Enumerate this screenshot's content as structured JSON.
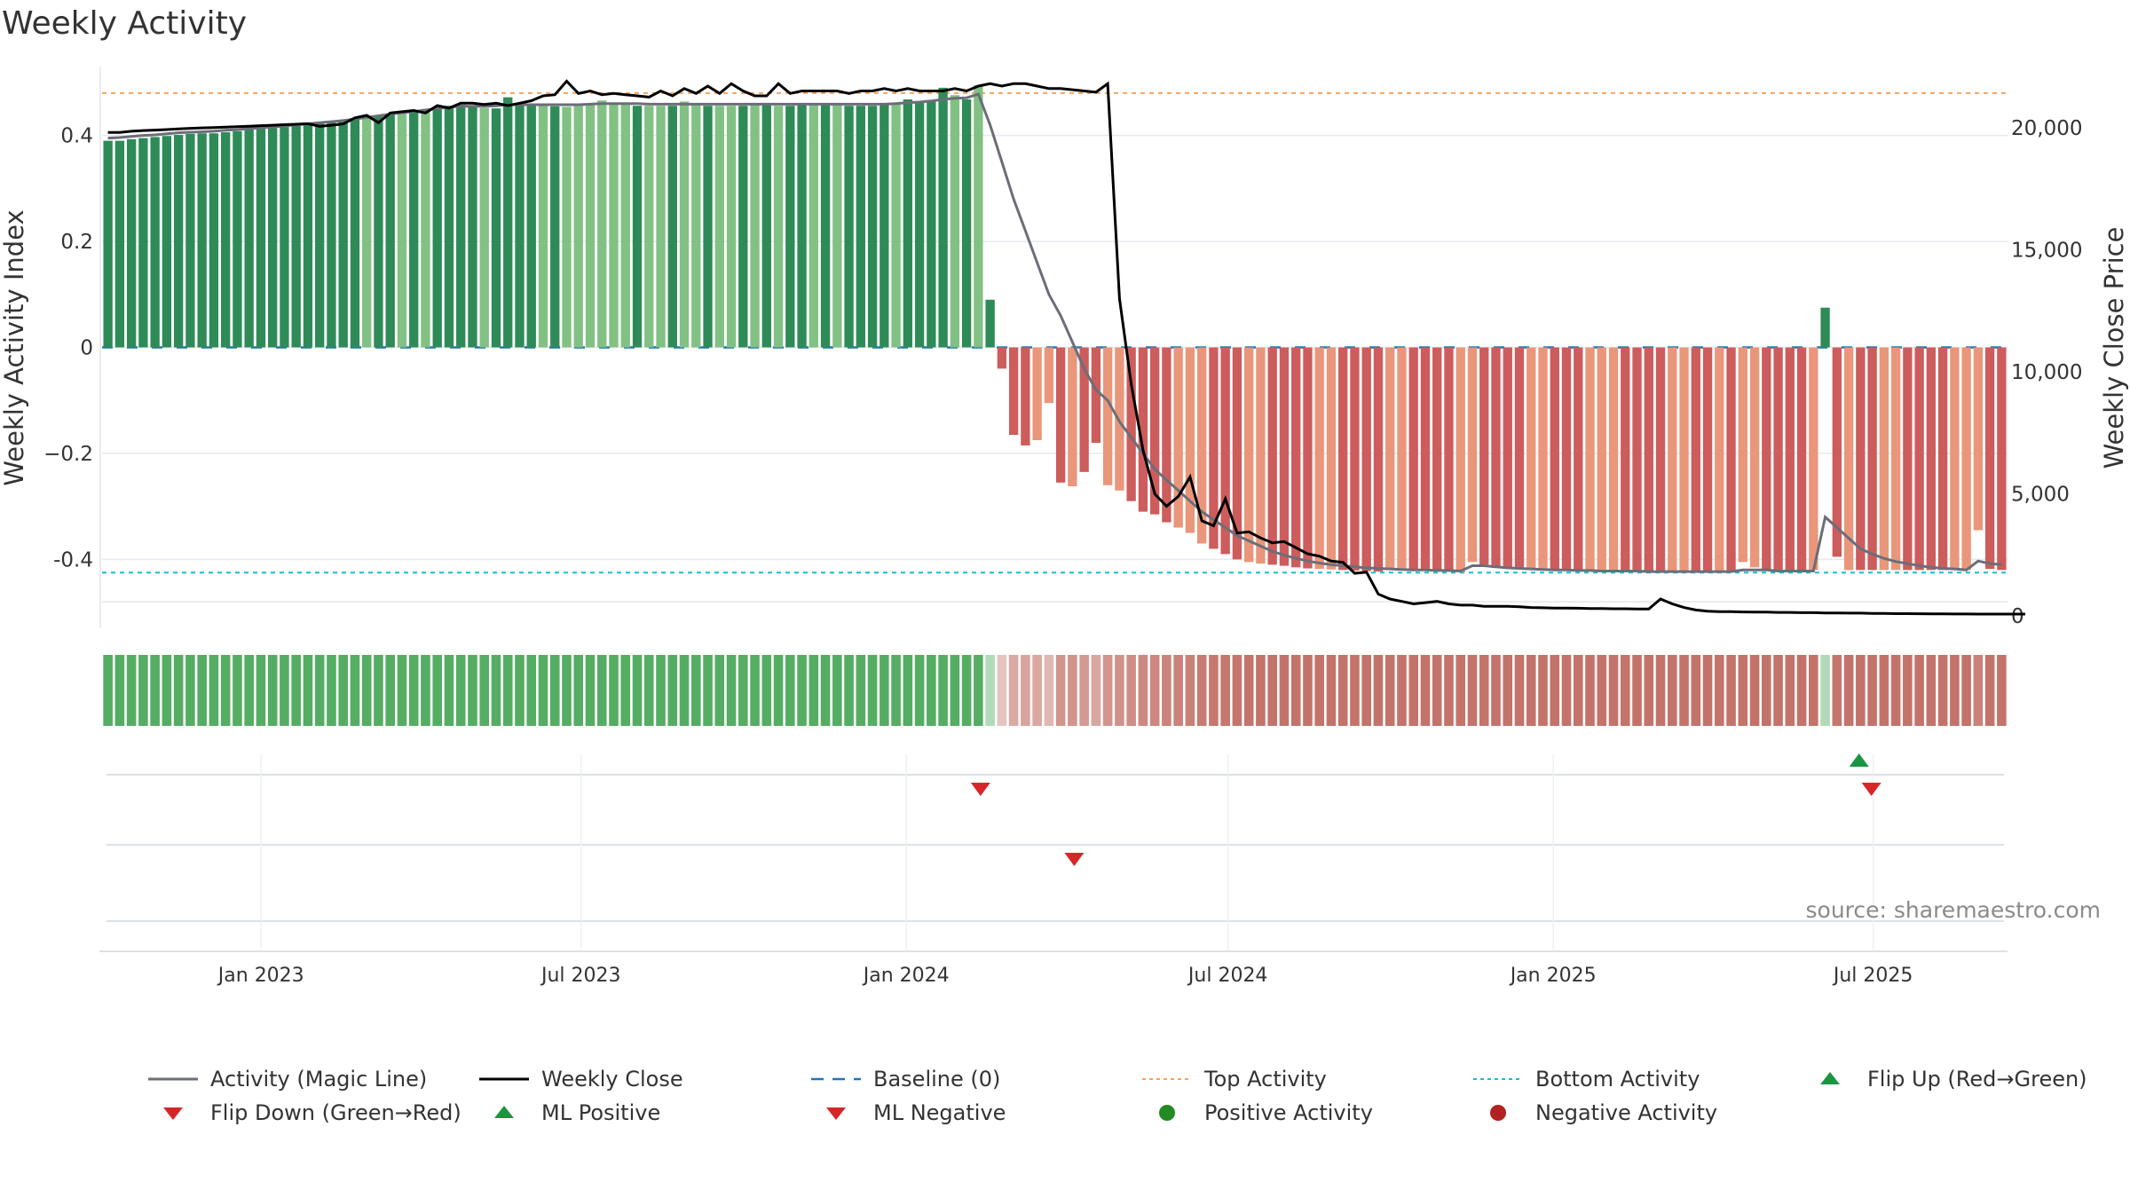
{
  "chart_data": {
    "type": "bar",
    "title": "Weekly Activity",
    "ylabel": "Weekly Activity Index",
    "y2label": "Weekly Close Price",
    "ylim": [
      -0.53,
      0.53
    ],
    "y2lim": [
      -500,
      22500
    ],
    "yticks": [
      "0.4",
      "0.2",
      "0",
      "−0.2",
      "-0.4"
    ],
    "ytick_values": [
      0.4,
      0.2,
      0,
      -0.2,
      -0.4
    ],
    "y2ticks": [
      "20,000",
      "15,000",
      "10,000",
      "5,000",
      "0"
    ],
    "y2tick_values": [
      20000,
      15000,
      10000,
      5000,
      0
    ],
    "x_start": "2022-10-03",
    "x_end": "2025-09-15",
    "xticks": [
      "Jan 2023",
      "Jul 2023",
      "Jan 2024",
      "Jul 2024",
      "Jan 2025",
      "Jul 2025"
    ],
    "xtick_dates": [
      "2023-01-01",
      "2023-07-01",
      "2024-01-01",
      "2024-07-01",
      "2025-01-01",
      "2025-07-01"
    ],
    "top_activity": 0.48,
    "bottom_activity": -0.425,
    "source": "source: sharemaestro.com",
    "grid": true,
    "legend_position": "bottom",
    "colors": {
      "pos_dark": "#2e8b57",
      "pos_light": "#82c184",
      "neg_dark": "#cd5c5c",
      "neg_light": "#e9967a",
      "magic_line": "#6b6e78",
      "close_line": "#000000",
      "baseline": "#1f77b4",
      "top": "#f4a460",
      "bottom": "#17becf",
      "flip_up": "#1a9641",
      "flip_down": "#d62728",
      "strip_green": "#55ad63",
      "strip_red": "#c4736a"
    },
    "series": [
      {
        "name": "Weekly Activity",
        "values": [
          0.39,
          0.39,
          0.393,
          0.395,
          0.397,
          0.399,
          0.401,
          0.403,
          0.404,
          0.404,
          0.406,
          0.408,
          0.411,
          0.412,
          0.414,
          0.416,
          0.418,
          0.42,
          0.422,
          0.424,
          0.427,
          0.43,
          0.433,
          0.436,
          0.44,
          0.443,
          0.446,
          0.45,
          0.453,
          0.456,
          0.458,
          0.455,
          0.452,
          0.451,
          0.472,
          0.46,
          0.458,
          0.456,
          0.455,
          0.454,
          0.456,
          0.46,
          0.466,
          0.46,
          0.458,
          0.456,
          0.456,
          0.456,
          0.456,
          0.464,
          0.458,
          0.456,
          0.456,
          0.456,
          0.456,
          0.46,
          0.458,
          0.456,
          0.456,
          0.458,
          0.458,
          0.458,
          0.458,
          0.456,
          0.456,
          0.456,
          0.458,
          0.46,
          0.468,
          0.462,
          0.466,
          0.49,
          0.476,
          0.468,
          0.495,
          0.09,
          -0.04,
          -0.165,
          -0.185,
          -0.175,
          -0.105,
          -0.255,
          -0.262,
          -0.235,
          -0.18,
          -0.26,
          -0.27,
          -0.29,
          -0.31,
          -0.315,
          -0.33,
          -0.34,
          -0.35,
          -0.37,
          -0.38,
          -0.39,
          -0.4,
          -0.405,
          -0.408,
          -0.41,
          -0.412,
          -0.415,
          -0.417,
          -0.418,
          -0.419,
          -0.42,
          -0.421,
          -0.422,
          -0.423,
          -0.42,
          -0.42,
          -0.421,
          -0.422,
          -0.422,
          -0.423,
          -0.424,
          -0.405,
          -0.41,
          -0.416,
          -0.418,
          -0.419,
          -0.42,
          -0.421,
          -0.421,
          -0.422,
          -0.422,
          -0.422,
          -0.423,
          -0.423,
          -0.424,
          -0.424,
          -0.424,
          -0.424,
          -0.424,
          -0.424,
          -0.424,
          -0.424,
          -0.424,
          -0.424,
          -0.405,
          -0.415,
          -0.42,
          -0.42,
          -0.42,
          -0.42,
          -0.42,
          0.075,
          -0.395,
          -0.42,
          -0.42,
          -0.42,
          -0.42,
          -0.42,
          -0.42,
          -0.42,
          -0.42,
          -0.42,
          -0.42,
          -0.42,
          -0.345,
          -0.418,
          -0.42
        ]
      },
      {
        "name": "Activity (Magic Line)",
        "axis": "left",
        "values": [
          0.395,
          0.396,
          0.398,
          0.4,
          0.401,
          0.403,
          0.405,
          0.406,
          0.407,
          0.408,
          0.41,
          0.411,
          0.413,
          0.414,
          0.416,
          0.418,
          0.42,
          0.422,
          0.424,
          0.426,
          0.428,
          0.431,
          0.434,
          0.437,
          0.44,
          0.443,
          0.445,
          0.448,
          0.451,
          0.453,
          0.455,
          0.455,
          0.455,
          0.456,
          0.458,
          0.458,
          0.458,
          0.458,
          0.458,
          0.458,
          0.458,
          0.459,
          0.46,
          0.46,
          0.46,
          0.46,
          0.459,
          0.459,
          0.459,
          0.459,
          0.459,
          0.459,
          0.459,
          0.459,
          0.459,
          0.459,
          0.459,
          0.459,
          0.459,
          0.459,
          0.459,
          0.459,
          0.459,
          0.459,
          0.459,
          0.459,
          0.459,
          0.46,
          0.462,
          0.463,
          0.465,
          0.468,
          0.47,
          0.471,
          0.478,
          0.42,
          0.35,
          0.28,
          0.22,
          0.16,
          0.1,
          0.06,
          0.01,
          -0.04,
          -0.08,
          -0.1,
          -0.14,
          -0.17,
          -0.2,
          -0.23,
          -0.25,
          -0.27,
          -0.29,
          -0.31,
          -0.325,
          -0.34,
          -0.355,
          -0.365,
          -0.375,
          -0.385,
          -0.392,
          -0.398,
          -0.403,
          -0.407,
          -0.41,
          -0.412,
          -0.414,
          -0.416,
          -0.417,
          -0.418,
          -0.419,
          -0.42,
          -0.42,
          -0.421,
          -0.421,
          -0.422,
          -0.412,
          -0.412,
          -0.414,
          -0.416,
          -0.417,
          -0.418,
          -0.419,
          -0.42,
          -0.42,
          -0.421,
          -0.421,
          -0.422,
          -0.422,
          -0.422,
          -0.422,
          -0.423,
          -0.423,
          -0.423,
          -0.423,
          -0.423,
          -0.423,
          -0.423,
          -0.423,
          -0.42,
          -0.42,
          -0.42,
          -0.422,
          -0.422,
          -0.422,
          -0.422,
          -0.32,
          -0.34,
          -0.36,
          -0.38,
          -0.39,
          -0.398,
          -0.404,
          -0.408,
          -0.412,
          -0.415,
          -0.417,
          -0.418,
          -0.42,
          -0.403,
          -0.408,
          -0.41
        ]
      },
      {
        "name": "Weekly Close",
        "axis": "right",
        "values": [
          19800,
          19800,
          19850,
          19880,
          19900,
          19920,
          19950,
          19970,
          19990,
          20000,
          20020,
          20040,
          20060,
          20080,
          20100,
          20120,
          20140,
          20160,
          20050,
          20100,
          20150,
          20400,
          20500,
          20200,
          20600,
          20650,
          20700,
          20600,
          20900,
          20800,
          21000,
          21000,
          20950,
          21000,
          20900,
          21000,
          21100,
          21300,
          21350,
          21900,
          21400,
          21500,
          21350,
          21400,
          21350,
          21300,
          21250,
          21500,
          21300,
          21600,
          21400,
          21700,
          21400,
          21800,
          21500,
          21300,
          21300,
          21800,
          21400,
          21500,
          21500,
          21500,
          21500,
          21400,
          21500,
          21500,
          21600,
          21500,
          21600,
          21500,
          21500,
          21500,
          21600,
          21500,
          21700,
          21800,
          21700,
          21800,
          21800,
          21700,
          21600,
          21600,
          21550,
          21500,
          21450,
          21800,
          13000,
          9500,
          6800,
          5000,
          4500,
          4900,
          5700,
          3900,
          3700,
          4800,
          3400,
          3450,
          3200,
          3000,
          3050,
          2800,
          2550,
          2450,
          2250,
          2200,
          1750,
          1800,
          900,
          700,
          600,
          500,
          550,
          600,
          500,
          450,
          450,
          400,
          400,
          400,
          380,
          350,
          340,
          330,
          330,
          320,
          310,
          310,
          300,
          300,
          290,
          290,
          700,
          500,
          350,
          250,
          200,
          180,
          180,
          170,
          160,
          160,
          150,
          150,
          140,
          140,
          130,
          130,
          120,
          120,
          110,
          110,
          100,
          100,
          95,
          90,
          90,
          85,
          85,
          80,
          80,
          80,
          80,
          80
        ]
      }
    ],
    "flip_events": [
      {
        "type": "flip_up",
        "row": 1,
        "date": "2025-06-23"
      },
      {
        "type": "flip_down",
        "row": 1,
        "date": "2024-02-12"
      },
      {
        "type": "flip_down",
        "row": 1,
        "date": "2025-06-30"
      },
      {
        "type": "flip_down",
        "row": 2,
        "date": "2024-04-05"
      }
    ]
  },
  "legend": [
    {
      "icon": "grey-line",
      "label": "Activity (Magic Line)"
    },
    {
      "icon": "black-line",
      "label": "Weekly Close"
    },
    {
      "icon": "blue-dash",
      "label": "Baseline (0)"
    },
    {
      "icon": "orange-dot-line",
      "label": "Top Activity"
    },
    {
      "icon": "cyan-dot-line",
      "label": "Bottom Activity"
    },
    {
      "icon": "green-triangle-up",
      "label": "Flip Up (Red→Green)"
    },
    {
      "icon": "red-triangle-down",
      "label": "Flip Down (Green→Red)"
    },
    {
      "icon": "green-triangle-up",
      "label": "ML Positive"
    },
    {
      "icon": "red-triangle-down",
      "label": "ML Negative"
    },
    {
      "icon": "green-circle",
      "label": "Positive Activity"
    },
    {
      "icon": "red-circle",
      "label": "Negative Activity"
    }
  ]
}
